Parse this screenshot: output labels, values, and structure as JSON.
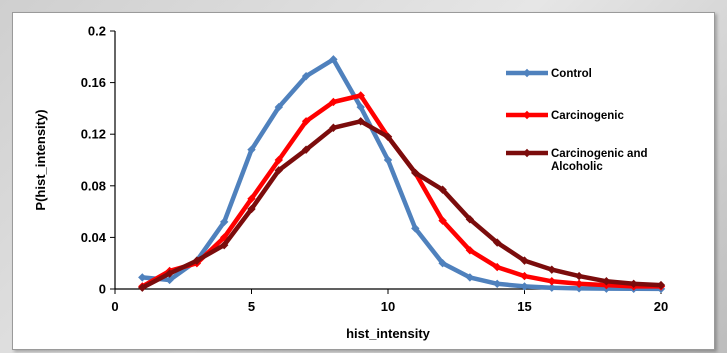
{
  "chart_data": {
    "type": "line",
    "title": "",
    "xlabel": "hist_intensity",
    "ylabel": "P(hist_intensity)",
    "xlim": [
      0,
      20
    ],
    "ylim": [
      0,
      0.2
    ],
    "x_ticks": [
      "0",
      "5",
      "10",
      "15",
      "20"
    ],
    "y_ticks": [
      "0",
      "0.04",
      "0.08",
      "0.12",
      "0.16",
      "0.2"
    ],
    "grid": false,
    "legend_position": "right",
    "series": [
      {
        "name": "Control",
        "color": "#4f81bd",
        "marker": "diamond",
        "x": [
          1,
          2,
          3,
          4,
          5,
          6,
          7,
          8,
          9,
          10,
          11,
          12,
          13,
          14,
          15,
          16,
          17,
          18,
          19,
          20
        ],
        "y": [
          0.009,
          0.007,
          0.022,
          0.052,
          0.108,
          0.141,
          0.165,
          0.178,
          0.141,
          0.1,
          0.047,
          0.02,
          0.009,
          0.004,
          0.002,
          0.001,
          0.0005,
          0.0003,
          0.0002,
          0.0001
        ]
      },
      {
        "name": "Carcinogenic",
        "color": "#ff0000",
        "marker": "diamond",
        "x": [
          1,
          2,
          3,
          4,
          5,
          6,
          7,
          8,
          9,
          10,
          11,
          12,
          13,
          14,
          15,
          16,
          17,
          18,
          19,
          20
        ],
        "y": [
          0.002,
          0.014,
          0.02,
          0.04,
          0.07,
          0.1,
          0.13,
          0.145,
          0.15,
          0.118,
          0.09,
          0.053,
          0.03,
          0.017,
          0.01,
          0.006,
          0.004,
          0.003,
          0.002,
          0.002
        ]
      },
      {
        "name": "Carcinogenic and\nAlcoholic",
        "color": "#7b0c0c",
        "marker": "diamond",
        "x": [
          1,
          2,
          3,
          4,
          5,
          6,
          7,
          8,
          9,
          10,
          11,
          12,
          13,
          14,
          15,
          16,
          17,
          18,
          19,
          20
        ],
        "y": [
          0.001,
          0.012,
          0.022,
          0.034,
          0.062,
          0.092,
          0.108,
          0.125,
          0.13,
          0.118,
          0.09,
          0.077,
          0.054,
          0.036,
          0.022,
          0.015,
          0.01,
          0.006,
          0.004,
          0.003
        ]
      }
    ]
  }
}
